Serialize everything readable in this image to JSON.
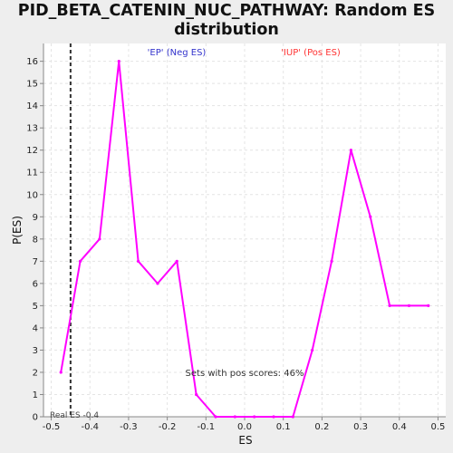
{
  "title_lines": [
    "PID_BETA_CATENIN_NUC_PATHWAY: Random ES",
    "distribution"
  ],
  "colors": {
    "line": "#ff00ff",
    "neg_label": "#3333cc",
    "pos_label": "#ff3333",
    "marker": "#333333",
    "grid": "#e4e4e4"
  },
  "chart_data": {
    "type": "line",
    "title": "PID_BETA_CATENIN_NUC_PATHWAY: Random ES distribution",
    "xlabel": "ES",
    "ylabel": "P(ES)",
    "xlim": [
      -0.52,
      0.52
    ],
    "ylim": [
      0,
      16.8
    ],
    "xticks": [
      -0.5,
      -0.4,
      -0.3,
      -0.2,
      -0.1,
      0.0,
      0.1,
      0.2,
      0.3,
      0.4,
      0.5
    ],
    "xtick_labels": [
      "-0.5",
      "-0.4",
      "-0.3",
      "-0.2",
      "-0.1",
      "0.0",
      "0.1",
      "0.2",
      "0.3",
      "0.4",
      "0.5"
    ],
    "yticks": [
      0,
      1,
      2,
      3,
      4,
      5,
      6,
      7,
      8,
      9,
      10,
      11,
      12,
      13,
      14,
      15,
      16
    ],
    "ytick_labels": [
      "0",
      "1",
      "2",
      "3",
      "4",
      "5",
      "6",
      "7",
      "8",
      "9",
      "10",
      "11",
      "12",
      "13",
      "14",
      "15",
      "16"
    ],
    "grid": true,
    "series": [
      {
        "x": [
          -0.475,
          -0.425,
          -0.375,
          -0.325,
          -0.275,
          -0.225,
          -0.175,
          -0.125,
          -0.075,
          -0.025,
          0.025,
          0.075,
          0.125,
          0.175,
          0.225,
          0.275,
          0.325,
          0.375,
          0.425,
          0.475
        ],
        "y": [
          2,
          7,
          8,
          16,
          7,
          6,
          7,
          1,
          0,
          0,
          0,
          0,
          0,
          3,
          7,
          12,
          9,
          5,
          5,
          5
        ]
      }
    ],
    "real_es": -0.45,
    "annotations": {
      "neg_label": "'EP' (Neg ES)",
      "pos_label": "'IUP' (Pos ES)",
      "pos_scores": "Sets with pos scores: 46%",
      "real_es_label": "Real ES -0.4"
    }
  }
}
